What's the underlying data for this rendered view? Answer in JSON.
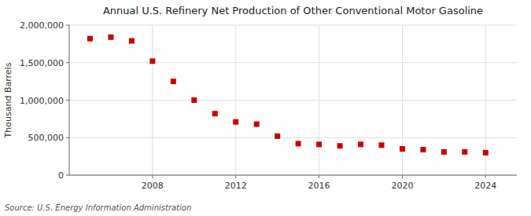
{
  "chart_data": {
    "type": "scatter",
    "title": "Annual U.S. Refinery Net Production of Other Conventional Motor Gasoline",
    "y_label": "Thousand Barrels",
    "source": "Source: U.S. Energy Information Administration",
    "x": [
      2005,
      2006,
      2007,
      2008,
      2009,
      2010,
      2011,
      2012,
      2013,
      2014,
      2015,
      2016,
      2017,
      2018,
      2019,
      2020,
      2021,
      2022,
      2023,
      2024
    ],
    "values": [
      1820000,
      1840000,
      1790000,
      1520000,
      1250000,
      1000000,
      820000,
      710000,
      680000,
      520000,
      420000,
      410000,
      390000,
      410000,
      400000,
      350000,
      340000,
      310000,
      310000,
      300000
    ],
    "color": "#cc0000",
    "marker": "square",
    "xlim": [
      2004.0,
      2025.5
    ],
    "xticks": [
      2008,
      2012,
      2016,
      2020,
      2024
    ],
    "ylim": [
      0,
      2000000
    ],
    "yticks": [
      0,
      {
        "value": 500000,
        "label": "500,000"
      },
      {
        "value": 1000000,
        "label": "1,000,000"
      },
      {
        "value": 1500000,
        "label": "1,500,000"
      },
      {
        "value": 2000000,
        "label": "2,000,000"
      }
    ],
    "grid": true
  }
}
